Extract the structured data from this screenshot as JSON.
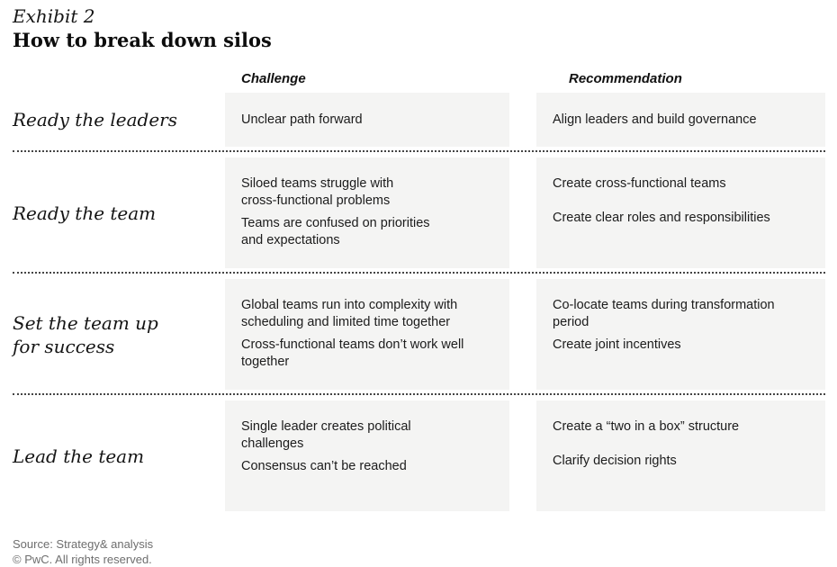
{
  "exhibit_label": "Exhibit 2",
  "title": "How to break down silos",
  "columns": {
    "challenge": "Challenge",
    "recommendation": "Recommendation"
  },
  "rows": [
    {
      "label": "Ready the leaders",
      "challenges": [
        "Unclear path forward"
      ],
      "recommendations": [
        "Align leaders and build governance"
      ]
    },
    {
      "label": "Ready the team",
      "challenges": [
        "Siloed teams struggle with\ncross-functional problems",
        "Teams are confused on priorities\nand expectations"
      ],
      "recommendations": [
        "Create cross-functional teams",
        "Create clear roles and responsibilities"
      ]
    },
    {
      "label": "Set the team up\nfor success",
      "challenges": [
        "Global teams run into complexity with\nscheduling and limited time together",
        "Cross-functional teams don’t work well\ntogether"
      ],
      "recommendations": [
        "Co-locate teams during transformation\nperiod",
        "Create joint incentives"
      ]
    },
    {
      "label": "Lead the team",
      "challenges": [
        "Single leader creates political\nchallenges",
        "Consensus can’t be reached"
      ],
      "recommendations": [
        "Create a “two in a box” structure",
        "Clarify decision rights"
      ]
    }
  ],
  "footer": {
    "source": "Source: Strategy& analysis",
    "copyright": "© PwC. All rights reserved."
  },
  "colors": {
    "cell_background": "#f4f4f3",
    "text": "#1c1c1c",
    "footer_text": "#6e6e6e",
    "separator": "#454545"
  }
}
